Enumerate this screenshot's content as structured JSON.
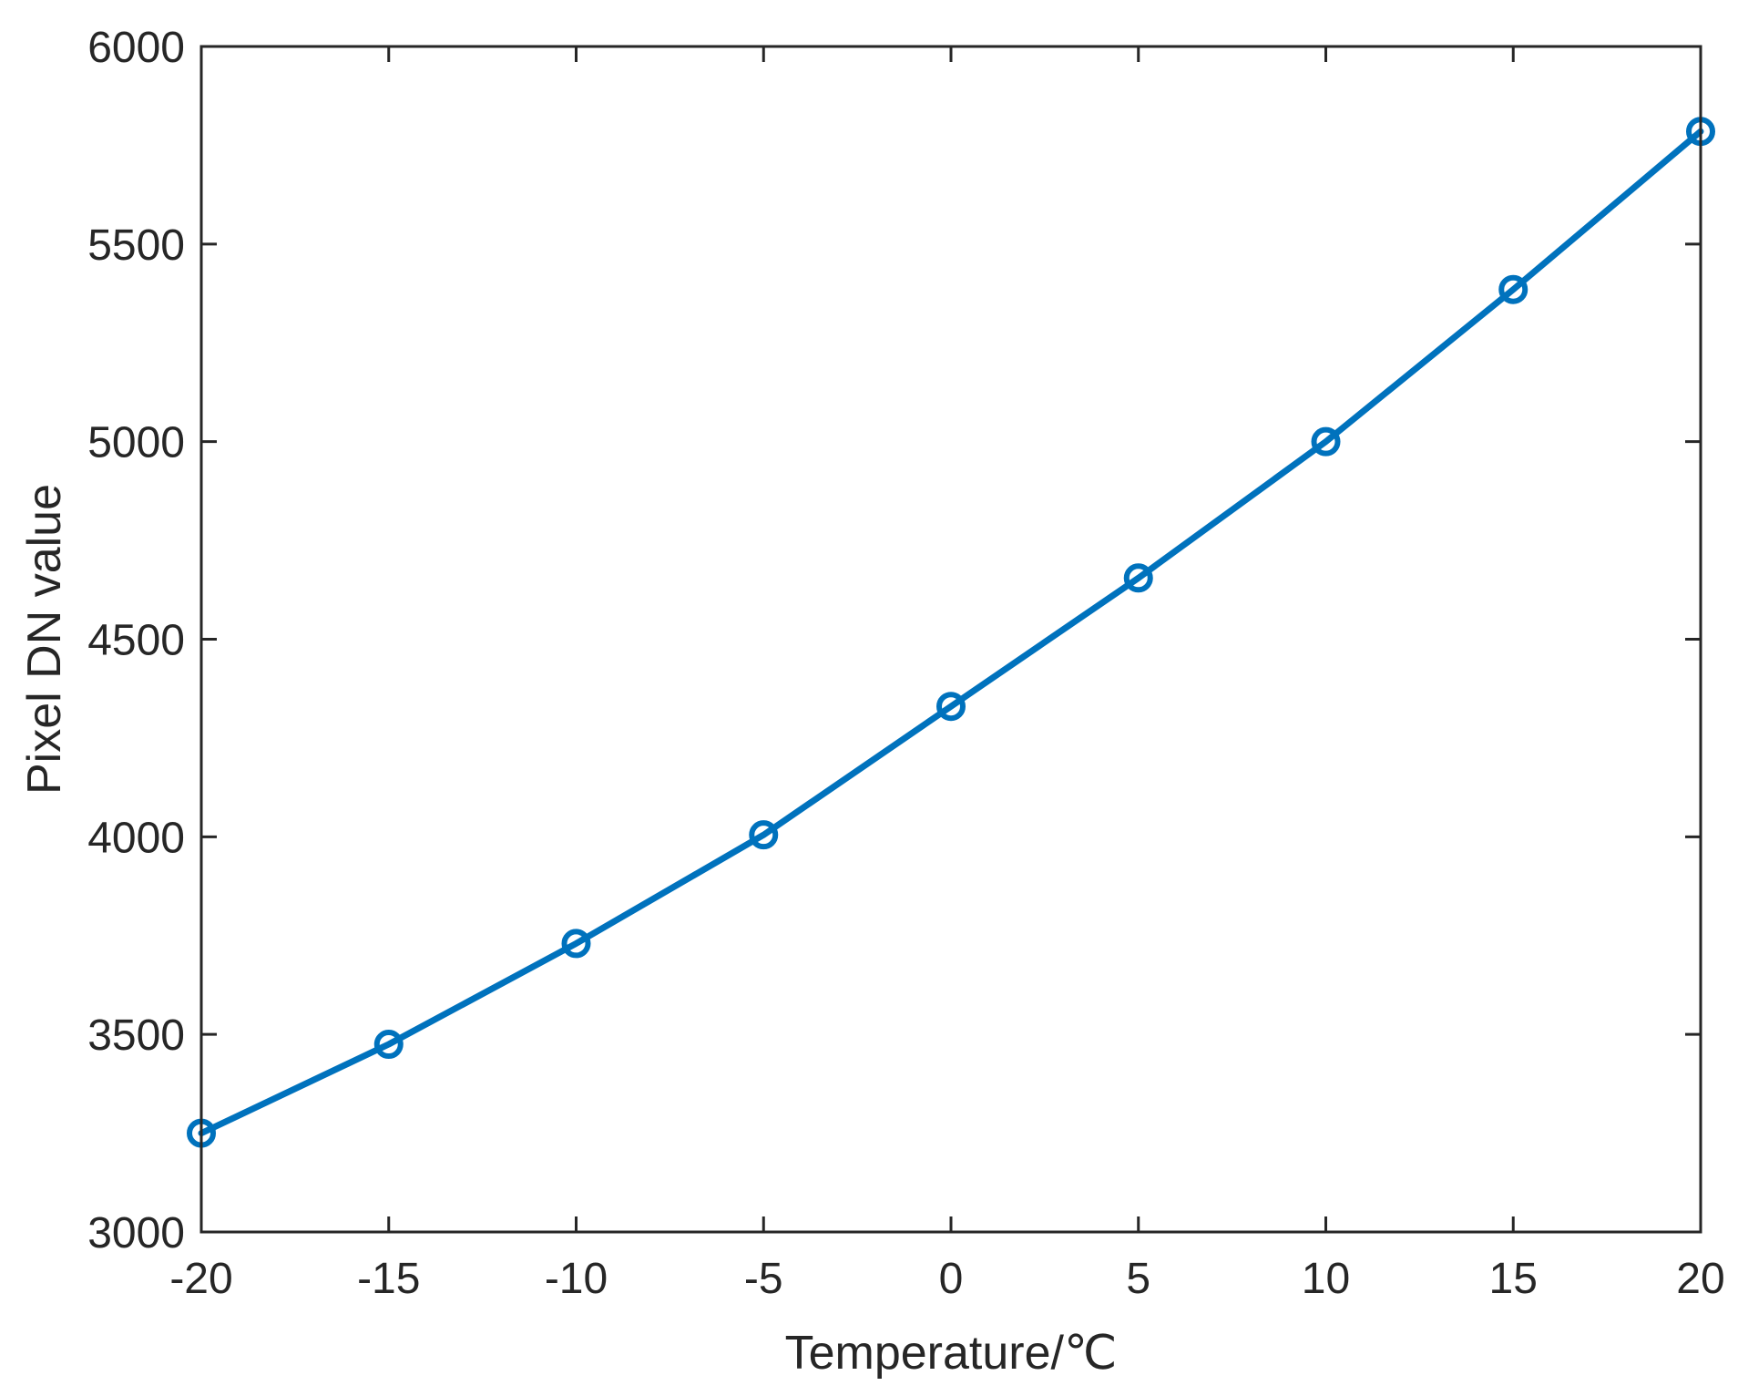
{
  "chart_data": {
    "type": "line",
    "title": "",
    "xlabel": "Temperature/℃",
    "ylabel": "Pixel DN value",
    "xlim": [
      -20,
      20
    ],
    "ylim": [
      3000,
      6000
    ],
    "xticks": [
      -20,
      -15,
      -10,
      -5,
      0,
      5,
      10,
      15,
      20
    ],
    "yticks": [
      3000,
      3500,
      4000,
      4500,
      5000,
      5500,
      6000
    ],
    "grid": false,
    "legend": "none",
    "marker": "circle",
    "series": [
      {
        "color": "#0072BD",
        "x": [
          -20,
          -15,
          -10,
          -5,
          0,
          5,
          10,
          15,
          20
        ],
        "y": [
          3250,
          3475,
          3730,
          4005,
          4330,
          4655,
          5000,
          5385,
          5785
        ]
      }
    ]
  }
}
